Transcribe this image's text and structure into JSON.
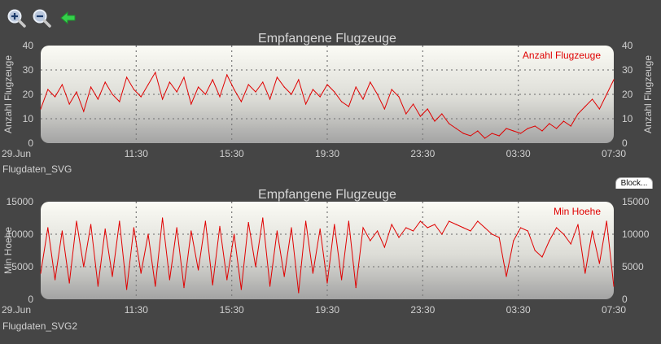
{
  "toolbar": {
    "zoom_in": "zoom-in-icon",
    "zoom_out": "zoom-out-icon",
    "back": "back-arrow-icon"
  },
  "block_button": {
    "label": "Block..."
  },
  "colors": {
    "background": "#454545",
    "series": "#e00000",
    "grid": "#777777"
  },
  "charts": [
    {
      "caption": "Flugdaten_SVG",
      "title": "Empfangene Flugzeuge",
      "ylabel_left": "Anzahl Flugzeuge",
      "ylabel_right": "Anzahl Flugzeuge",
      "legend": "Anzahl Flugzeuge"
    },
    {
      "caption": "Flugdaten_SVG2",
      "title": "Empfangene Flugzeuge",
      "ylabel_left": "Min Hoehe",
      "ylabel_right": "",
      "legend": "Min Hoehe"
    }
  ],
  "chart_data": [
    {
      "type": "line",
      "title": "Empfangene Flugzeuge",
      "x_tick_labels": [
        "29.Jun",
        "11:30",
        "15:30",
        "19:30",
        "23:30",
        "03:30",
        "07:30"
      ],
      "x_range_hours": [
        0,
        24
      ],
      "y_ticks": [
        0,
        10,
        20,
        30,
        40
      ],
      "ylim": [
        0,
        40
      ],
      "ylabel": "Anzahl Flugzeuge",
      "grid": true,
      "legend_position": "top-right",
      "series": [
        {
          "name": "Anzahl Flugzeuge",
          "color": "#e00000",
          "x_hours": [
            0,
            0.3,
            0.6,
            0.9,
            1.2,
            1.5,
            1.8,
            2.1,
            2.4,
            2.7,
            3.0,
            3.3,
            3.6,
            3.9,
            4.2,
            4.5,
            4.8,
            5.1,
            5.4,
            5.7,
            6.0,
            6.3,
            6.6,
            6.9,
            7.2,
            7.5,
            7.8,
            8.1,
            8.4,
            8.7,
            9.0,
            9.3,
            9.6,
            9.9,
            10.2,
            10.5,
            10.8,
            11.1,
            11.4,
            11.7,
            12.0,
            12.3,
            12.6,
            12.9,
            13.2,
            13.5,
            13.8,
            14.1,
            14.4,
            14.7,
            15.0,
            15.3,
            15.6,
            15.9,
            16.2,
            16.5,
            16.8,
            17.1,
            17.4,
            17.7,
            18.0,
            18.3,
            18.6,
            18.9,
            19.2,
            19.5,
            19.8,
            20.1,
            20.4,
            20.7,
            21.0,
            21.3,
            21.6,
            21.9,
            22.2,
            22.5,
            22.8,
            23.1,
            23.4,
            23.7,
            24.0
          ],
          "values": [
            14,
            22,
            19,
            24,
            16,
            21,
            13,
            23,
            18,
            25,
            20,
            17,
            27,
            22,
            19,
            24,
            29,
            18,
            25,
            21,
            27,
            16,
            23,
            20,
            26,
            19,
            28,
            22,
            17,
            24,
            21,
            25,
            18,
            27,
            23,
            20,
            26,
            16,
            22,
            19,
            24,
            21,
            17,
            15,
            23,
            18,
            25,
            20,
            14,
            22,
            19,
            12,
            16,
            11,
            14,
            9,
            12,
            8,
            6,
            4,
            3,
            5,
            2,
            4,
            3,
            6,
            5,
            4,
            6,
            7,
            5,
            8,
            6,
            9,
            7,
            12,
            15,
            18,
            14,
            20,
            26
          ]
        }
      ]
    },
    {
      "type": "line",
      "title": "Empfangene Flugzeuge",
      "x_tick_labels": [
        "29.Jun",
        "11:30",
        "15:30",
        "19:30",
        "23:30",
        "03:30",
        "07:30"
      ],
      "x_range_hours": [
        0,
        24
      ],
      "y_ticks": [
        0,
        5000,
        10000,
        15000
      ],
      "ylim": [
        0,
        15000
      ],
      "ylabel": "Min Hoehe",
      "grid": true,
      "legend_position": "top-right",
      "series": [
        {
          "name": "Min Hoehe",
          "color": "#e00000",
          "x_hours": [
            0,
            0.3,
            0.6,
            0.9,
            1.2,
            1.5,
            1.8,
            2.1,
            2.4,
            2.7,
            3.0,
            3.3,
            3.6,
            3.9,
            4.2,
            4.5,
            4.8,
            5.1,
            5.4,
            5.7,
            6.0,
            6.3,
            6.6,
            6.9,
            7.2,
            7.5,
            7.8,
            8.1,
            8.4,
            8.7,
            9.0,
            9.3,
            9.6,
            9.9,
            10.2,
            10.5,
            10.8,
            11.1,
            11.4,
            11.7,
            12.0,
            12.3,
            12.6,
            12.9,
            13.2,
            13.5,
            13.8,
            14.1,
            14.4,
            14.7,
            15.0,
            15.3,
            15.6,
            15.9,
            16.2,
            16.5,
            16.8,
            17.1,
            17.4,
            17.7,
            18.0,
            18.3,
            18.6,
            18.9,
            19.2,
            19.5,
            19.8,
            20.1,
            20.4,
            20.7,
            21.0,
            21.3,
            21.6,
            21.9,
            22.2,
            22.5,
            22.8,
            23.1,
            23.4,
            23.7,
            24.0
          ],
          "values": [
            4000,
            11000,
            3000,
            10500,
            2500,
            12000,
            5000,
            11500,
            2000,
            10800,
            3500,
            12000,
            1500,
            11000,
            4000,
            10000,
            2000,
            12500,
            3000,
            11000,
            1800,
            10500,
            4500,
            12000,
            2200,
            11200,
            3000,
            10000,
            1500,
            11800,
            5000,
            12500,
            2000,
            10500,
            3500,
            11000,
            1000,
            12000,
            4000,
            10800,
            2500,
            11500,
            3000,
            12000,
            1800,
            11000,
            9000,
            10500,
            8000,
            11500,
            9500,
            11000,
            10500,
            12000,
            11000,
            11500,
            10000,
            12000,
            11500,
            11000,
            10500,
            12000,
            11000,
            10000,
            9500,
            3500,
            9000,
            11000,
            10500,
            7500,
            6500,
            9000,
            11000,
            10000,
            8500,
            11500,
            4000,
            10500,
            5500,
            12000,
            2000
          ]
        }
      ]
    }
  ]
}
